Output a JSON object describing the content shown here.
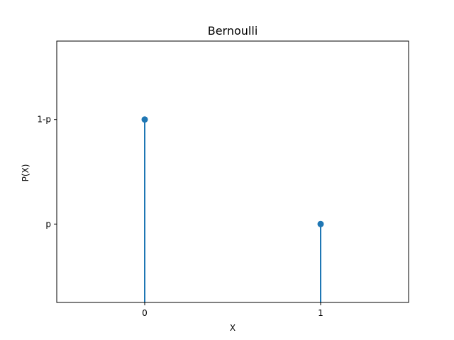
{
  "chart_data": {
    "type": "stem",
    "title": "Bernoulli",
    "xlabel": "X",
    "ylabel": "P(X)",
    "x_ticks": [
      {
        "value": 0,
        "label": "0"
      },
      {
        "value": 1,
        "label": "1"
      }
    ],
    "y_ticks": [
      {
        "value": 0.4,
        "label": "p"
      },
      {
        "value": 0.6,
        "label": "1-p"
      }
    ],
    "xlim": [
      -0.5,
      1.5
    ],
    "ylim": [
      0.25,
      0.75
    ],
    "points": [
      {
        "x": 0,
        "y": 0.6
      },
      {
        "x": 1,
        "y": 0.4
      }
    ],
    "grid": false,
    "color": "#1f77b4"
  }
}
